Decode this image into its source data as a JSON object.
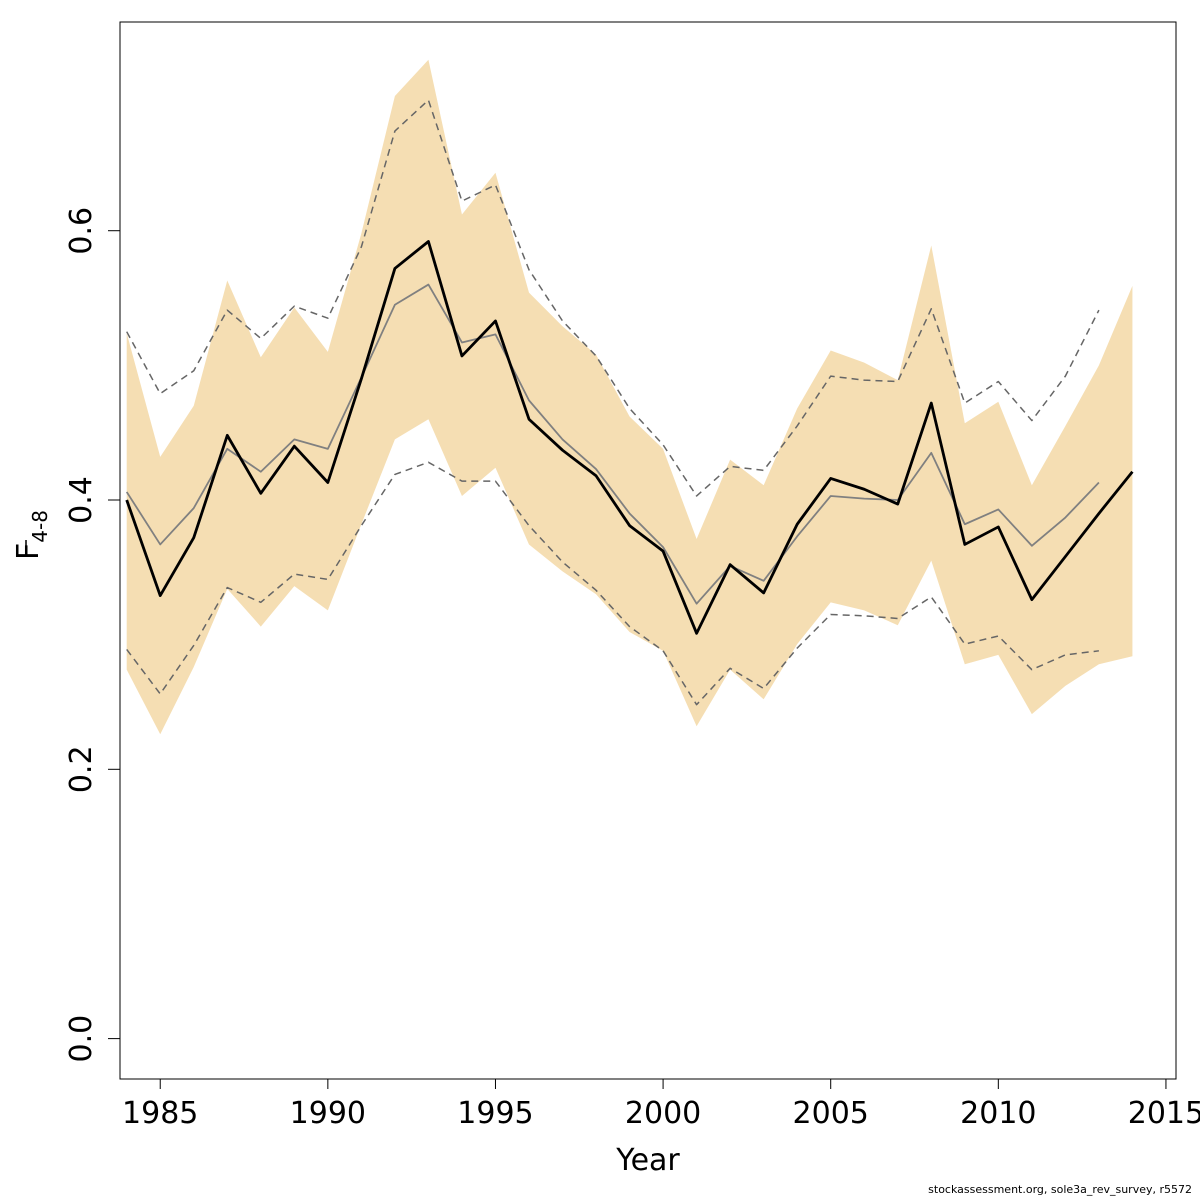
{
  "chart_data": {
    "type": "line",
    "xlabel": "Year",
    "ylabel_main": "F",
    "ylabel_sub": "4-8",
    "xlim": [
      1983.8,
      2015.3
    ],
    "ylim": [
      -0.03,
      0.755
    ],
    "xticks": [
      1985,
      1990,
      1995,
      2000,
      2005,
      2010,
      2015
    ],
    "yticks": [
      0.0,
      0.2,
      0.4,
      0.6
    ],
    "ytick_labels": [
      "0.0",
      "0.2",
      "0.4",
      "0.6"
    ],
    "band_color": "#f5deb3",
    "years": [
      1984,
      1985,
      1986,
      1987,
      1988,
      1989,
      1990,
      1991,
      1992,
      1993,
      1994,
      1995,
      1996,
      1997,
      1998,
      1999,
      2000,
      2001,
      2002,
      2003,
      2004,
      2005,
      2006,
      2007,
      2008,
      2009,
      2010,
      2011,
      2012,
      2013,
      2014
    ],
    "series": [
      {
        "role": "estimate",
        "color": "#000000",
        "values": [
          0.4,
          0.329,
          0.372,
          0.448,
          0.405,
          0.44,
          0.413,
          0.49,
          0.572,
          0.592,
          0.507,
          0.533,
          0.46,
          0.437,
          0.418,
          0.381,
          0.362,
          0.301,
          0.352,
          0.331,
          0.382,
          0.416,
          0.408,
          0.397,
          0.472,
          0.367,
          0.38,
          0.326,
          0.358,
          0.39,
          0.421
        ]
      },
      {
        "role": "band-upper",
        "values": [
          0.524,
          0.432,
          0.47,
          0.563,
          0.506,
          0.543,
          0.51,
          0.598,
          0.7,
          0.727,
          0.612,
          0.643,
          0.554,
          0.529,
          0.508,
          0.462,
          0.438,
          0.371,
          0.43,
          0.411,
          0.468,
          0.511,
          0.502,
          0.489,
          0.589,
          0.457,
          0.473,
          0.411,
          0.455,
          0.5,
          0.559
        ]
      },
      {
        "role": "band-lower",
        "values": [
          0.274,
          0.226,
          0.276,
          0.334,
          0.306,
          0.336,
          0.318,
          0.382,
          0.445,
          0.46,
          0.403,
          0.424,
          0.367,
          0.347,
          0.33,
          0.302,
          0.288,
          0.232,
          0.274,
          0.252,
          0.293,
          0.324,
          0.318,
          0.307,
          0.355,
          0.278,
          0.285,
          0.241,
          0.262,
          0.278,
          0.284
        ]
      },
      {
        "role": "previous-estimate",
        "color": "#808080",
        "values": [
          0.406,
          0.367,
          0.394,
          0.438,
          0.421,
          0.445,
          0.438,
          0.491,
          0.545,
          0.56,
          0.517,
          0.523,
          0.474,
          0.445,
          0.423,
          0.39,
          0.365,
          0.323,
          0.351,
          0.34,
          0.373,
          0.403,
          0.401,
          0.4,
          0.435,
          0.382,
          0.393,
          0.366,
          0.387,
          0.413
        ]
      },
      {
        "role": "previous-upper",
        "color": "#666666",
        "values": [
          0.525,
          0.479,
          0.496,
          0.541,
          0.52,
          0.544,
          0.535,
          0.588,
          0.674,
          0.697,
          0.622,
          0.634,
          0.571,
          0.533,
          0.507,
          0.468,
          0.441,
          0.403,
          0.425,
          0.422,
          0.455,
          0.492,
          0.489,
          0.488,
          0.542,
          0.472,
          0.488,
          0.459,
          0.492,
          0.541
        ]
      },
      {
        "role": "previous-lower",
        "color": "#666666",
        "values": [
          0.289,
          0.256,
          0.292,
          0.335,
          0.324,
          0.345,
          0.341,
          0.381,
          0.419,
          0.428,
          0.414,
          0.414,
          0.381,
          0.354,
          0.333,
          0.306,
          0.288,
          0.248,
          0.275,
          0.26,
          0.29,
          0.315,
          0.314,
          0.312,
          0.328,
          0.293,
          0.299,
          0.274,
          0.285,
          0.288
        ]
      }
    ]
  },
  "footer": "stockassessment.org, sole3a_rev_survey, r5572"
}
